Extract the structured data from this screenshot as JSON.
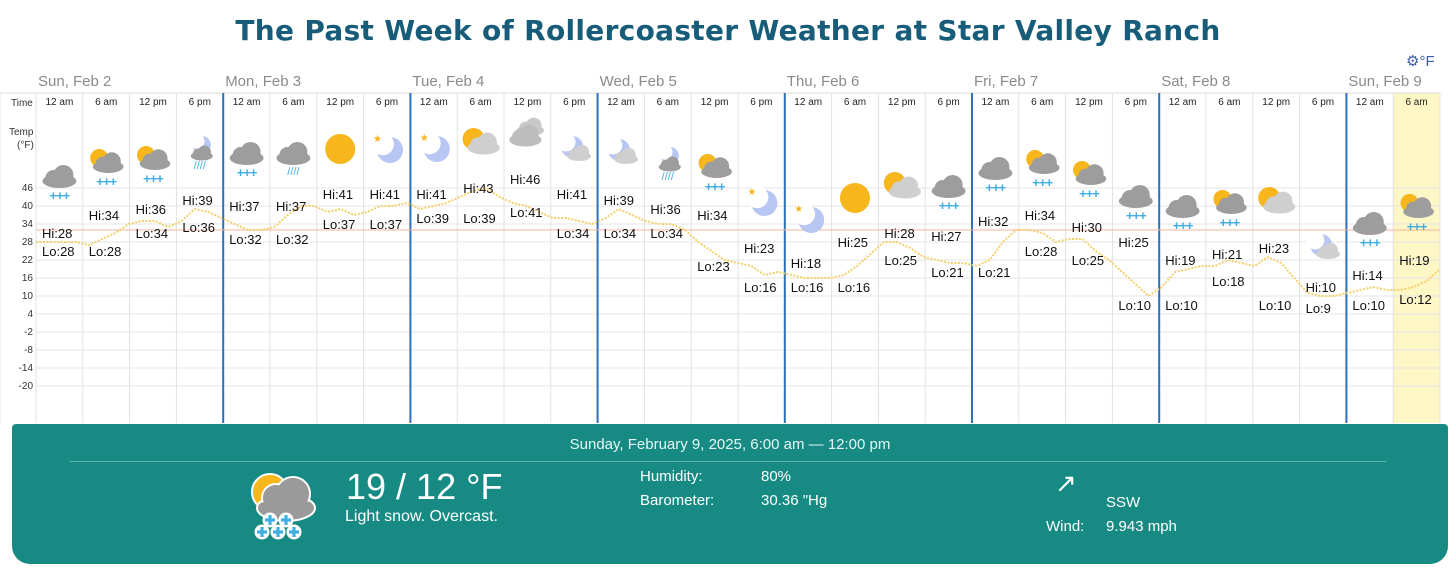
{
  "title": "The Past Week of Rollercoaster Weather at Star Valley Ranch",
  "settings_label": "⚙°F",
  "axis": {
    "time_label": "Time",
    "temp_label_1": "Temp",
    "temp_label_2": "(°F)",
    "ticks": [
      "46",
      "40",
      "34",
      "28",
      "22",
      "16",
      "10",
      "4",
      "-2",
      "-8",
      "-14",
      "-20"
    ],
    "tick_values": [
      46,
      40,
      34,
      28,
      22,
      16,
      10,
      4,
      -2,
      -8,
      -14,
      -20
    ]
  },
  "days": [
    "Sun, Feb 2",
    "Mon, Feb 3",
    "Tue, Feb 4",
    "Wed, Feb 5",
    "Thu, Feb 6",
    "Fri, Feb 7",
    "Sat, Feb 8",
    "Sun, Feb 9"
  ],
  "slots": [
    {
      "time": "12 am",
      "icon": "cloud-snow",
      "hi": "Hi:28",
      "lo": "Lo:28"
    },
    {
      "time": "6 am",
      "icon": "partly-sunny-cloud-snow",
      "hi": "Hi:34",
      "lo": "Lo:28"
    },
    {
      "time": "12 pm",
      "icon": "partly-sunny-cloud-snow",
      "hi": "Hi:36",
      "lo": "Lo:34"
    },
    {
      "time": "6 pm",
      "icon": "moon-cloud-rain",
      "hi": "Hi:39",
      "lo": "Lo:36"
    },
    {
      "time": "12 am",
      "icon": "cloud-snow",
      "hi": "Hi:37",
      "lo": "Lo:32"
    },
    {
      "time": "6 am",
      "icon": "cloud-rain",
      "hi": "Hi:37",
      "lo": "Lo:32"
    },
    {
      "time": "12 pm",
      "icon": "sun",
      "hi": "Hi:41",
      "lo": "Lo:37"
    },
    {
      "time": "6 pm",
      "icon": "moon-star",
      "hi": "Hi:41",
      "lo": "Lo:37"
    },
    {
      "time": "12 am",
      "icon": "moon-star",
      "hi": "Hi:41",
      "lo": "Lo:39"
    },
    {
      "time": "6 am",
      "icon": "partly-sunny-cloud",
      "hi": "Hi:43",
      "lo": "Lo:39"
    },
    {
      "time": "12 pm",
      "icon": "clouds",
      "hi": "Hi:46",
      "lo": "Lo:41"
    },
    {
      "time": "6 pm",
      "icon": "moon-cloud",
      "hi": "Hi:41",
      "lo": "Lo:34"
    },
    {
      "time": "12 am",
      "icon": "moon-cloud",
      "hi": "Hi:39",
      "lo": "Lo:34"
    },
    {
      "time": "6 am",
      "icon": "moon-cloud-rain",
      "hi": "Hi:36",
      "lo": "Lo:34"
    },
    {
      "time": "12 pm",
      "icon": "partly-sunny-cloud-snow",
      "hi": "Hi:34",
      "lo": "Lo:23"
    },
    {
      "time": "6 pm",
      "icon": "moon-star",
      "hi": "Hi:23",
      "lo": "Lo:16"
    },
    {
      "time": "12 am",
      "icon": "moon-star",
      "hi": "Hi:18",
      "lo": "Lo:16"
    },
    {
      "time": "6 am",
      "icon": "sun",
      "hi": "Hi:25",
      "lo": "Lo:16"
    },
    {
      "time": "12 pm",
      "icon": "partly-sunny-cloud",
      "hi": "Hi:28",
      "lo": "Lo:25"
    },
    {
      "time": "6 pm",
      "icon": "cloud-snow",
      "hi": "Hi:27",
      "lo": "Lo:21"
    },
    {
      "time": "12 am",
      "icon": "cloud-snow",
      "hi": "Hi:32",
      "lo": "Lo:21"
    },
    {
      "time": "6 am",
      "icon": "partly-sunny-cloud-snow",
      "hi": "Hi:34",
      "lo": "Lo:28"
    },
    {
      "time": "12 pm",
      "icon": "partly-sunny-cloud-snow",
      "hi": "Hi:30",
      "lo": "Lo:25"
    },
    {
      "time": "6 pm",
      "icon": "cloud-snow",
      "hi": "Hi:25",
      "lo": "Lo:10"
    },
    {
      "time": "12 am",
      "icon": "cloud-snow",
      "hi": "Hi:19",
      "lo": "Lo:10"
    },
    {
      "time": "6 am",
      "icon": "partly-sunny-cloud-snow",
      "hi": "Hi:21",
      "lo": "Lo:18"
    },
    {
      "time": "12 pm",
      "icon": "partly-sunny-cloud",
      "hi": "Hi:23",
      "lo": "Lo:10"
    },
    {
      "time": "6 pm",
      "icon": "moon-cloud",
      "hi": "Hi:10",
      "lo": "Lo:9"
    },
    {
      "time": "12 am",
      "icon": "cloud-snow",
      "hi": "Hi:14",
      "lo": "Lo:10"
    },
    {
      "time": "6 am",
      "icon": "partly-sunny-cloud-snow",
      "hi": "Hi:19",
      "lo": "Lo:12"
    }
  ],
  "selected_slot": 29,
  "temp_curve": [
    28,
    28,
    28,
    28,
    27,
    29,
    31,
    34,
    35,
    35,
    33,
    35,
    39,
    38,
    36,
    34,
    32,
    32,
    33,
    37,
    40,
    40,
    38,
    39,
    37,
    38,
    40,
    40,
    41,
    39,
    40,
    41,
    43,
    45,
    46,
    43,
    41,
    40,
    38,
    36,
    36,
    35,
    34,
    36,
    39,
    37,
    35,
    34,
    34,
    32,
    28,
    25,
    22,
    21,
    20,
    17,
    18,
    17,
    16,
    16,
    16,
    17,
    20,
    24,
    28,
    28,
    26,
    23,
    22,
    21,
    21,
    20,
    22,
    28,
    32,
    32,
    31,
    28,
    29,
    29,
    25,
    22,
    18,
    14,
    10,
    13,
    18,
    19,
    20,
    20,
    22,
    21,
    20,
    23,
    21,
    16,
    11,
    10,
    10,
    11,
    12,
    13,
    12,
    12,
    13,
    15,
    19
  ],
  "freezing_line": 32,
  "colors": {
    "title": "#175c78",
    "day_divider": "#2f6fb8",
    "curve": "#f5cf69",
    "freezing_line": "#f3b59b",
    "selected_col": "#fdf6c5",
    "panel": "#178a84",
    "snow": "#40aee3",
    "cloud": "#9d9d9d",
    "sun": "#f6b61c",
    "moon": "#b7c6f2"
  },
  "detail": {
    "date_range": "Sunday, February 9, 2025, 6:00 am — 12:00 pm",
    "icon": "partly-sunny-cloud-snow",
    "temp": "19 / 12 °F",
    "condition": "Light snow. Overcast.",
    "humidity_label": "Humidity:",
    "humidity": "80%",
    "barometer_label": "Barometer:",
    "barometer": "30.36 \"Hg",
    "wind_direction": "SSW",
    "wind_arrow": "↗",
    "wind_label": "Wind:",
    "wind_speed": "9.943 mph"
  }
}
